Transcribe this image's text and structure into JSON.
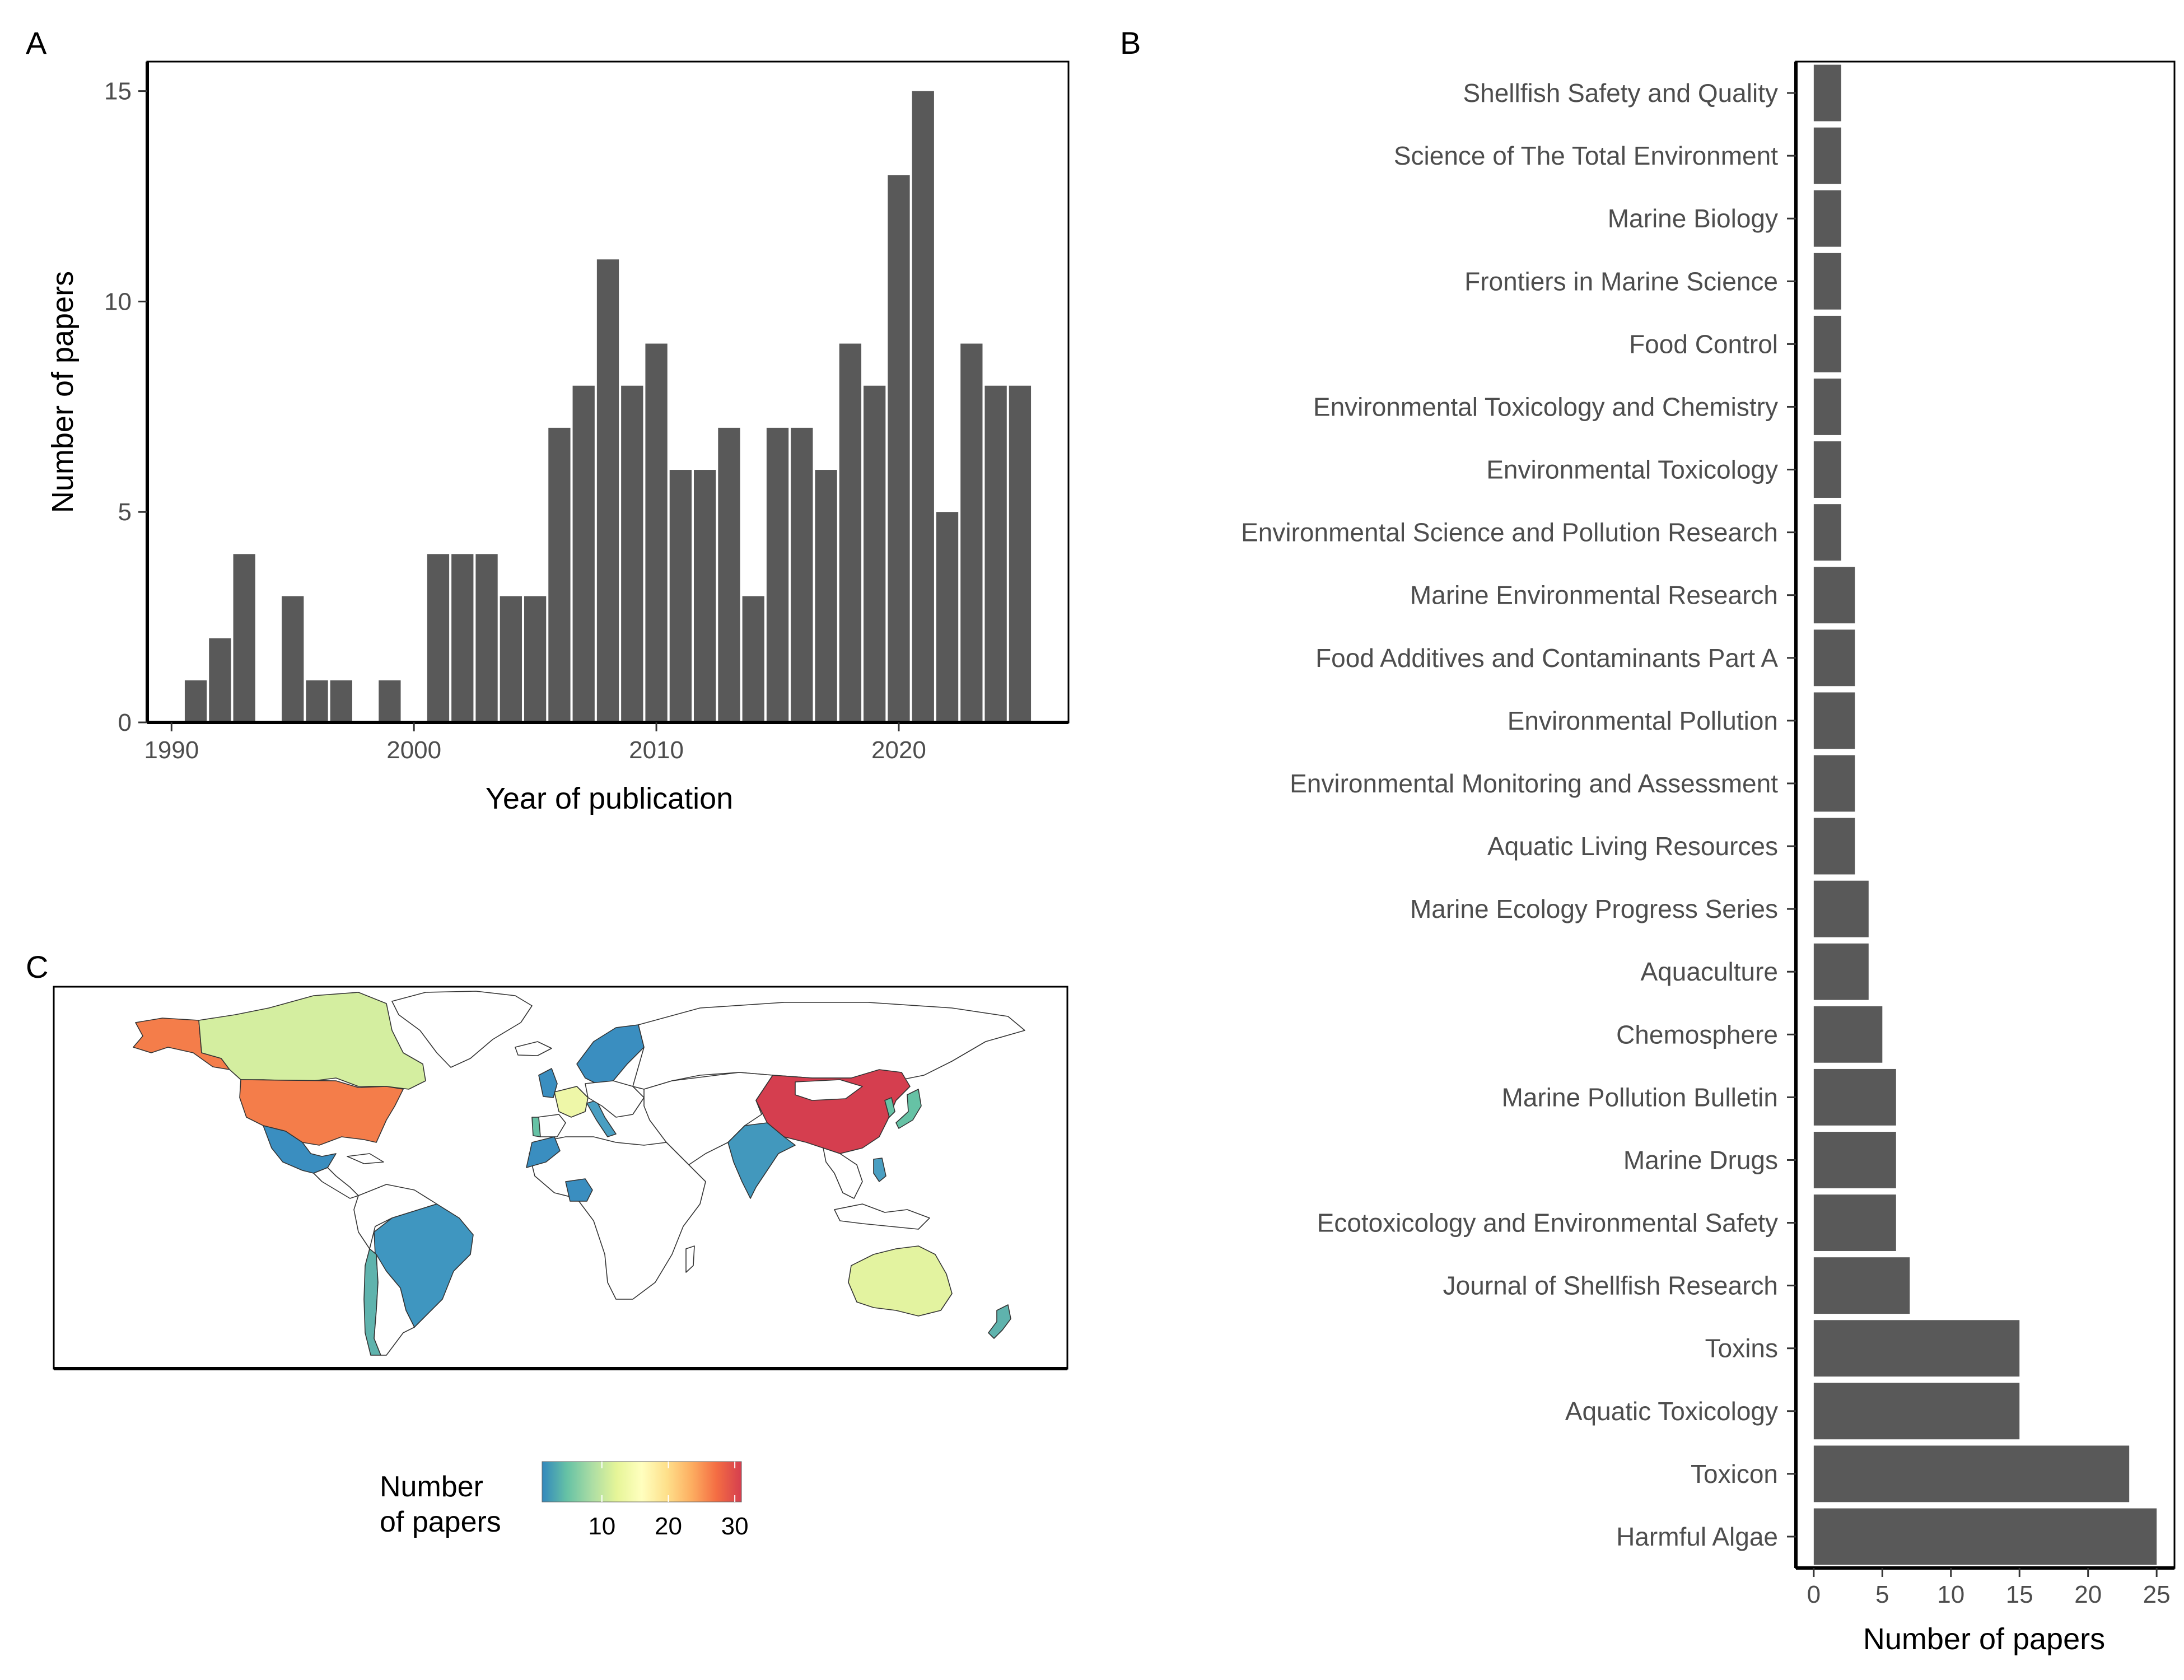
{
  "panels": {
    "a": "A",
    "b": "B",
    "c": "C"
  },
  "chart_data": [
    {
      "type": "bar",
      "panel": "A",
      "xlabel": "Year of publication",
      "ylabel": "Number of papers",
      "xlim": [
        1989,
        2027
      ],
      "ylim": [
        0,
        15.7
      ],
      "xticks": [
        1990,
        2000,
        2010,
        2020
      ],
      "yticks": [
        0,
        5,
        10,
        15
      ],
      "grid": false,
      "x": [
        1991,
        1992,
        1993,
        1995,
        1996,
        1997,
        1999,
        2001,
        2002,
        2003,
        2004,
        2005,
        2006,
        2007,
        2008,
        2009,
        2010,
        2011,
        2012,
        2013,
        2014,
        2015,
        2016,
        2017,
        2018,
        2019,
        2020,
        2021,
        2022,
        2023,
        2024,
        2025
      ],
      "values": [
        1,
        2,
        4,
        3,
        1,
        1,
        1,
        4,
        4,
        4,
        3,
        3,
        7,
        8,
        11,
        8,
        9,
        6,
        6,
        7,
        3,
        7,
        7,
        6,
        9,
        8,
        13,
        15,
        5,
        9,
        8,
        8
      ],
      "bar_color": "#595959"
    },
    {
      "type": "bar",
      "orientation": "horizontal",
      "panel": "B",
      "xlabel": "Number of papers",
      "ylabel": "",
      "xlim": [
        -1.3,
        26.3
      ],
      "xticks": [
        0,
        5,
        10,
        15,
        20,
        25
      ],
      "grid": false,
      "categories": [
        "Shellfish Safety and Quality",
        "Science of The Total Environment",
        "Marine Biology",
        "Frontiers in Marine Science",
        "Food Control",
        "Environmental Toxicology and Chemistry",
        "Environmental Toxicology",
        "Environmental Science and Pollution Research",
        "Marine Environmental Research",
        "Food Additives and Contaminants Part A",
        "Environmental Pollution",
        "Environmental Monitoring and Assessment",
        "Aquatic Living Resources",
        "Marine Ecology Progress Series",
        "Aquaculture",
        "Chemosphere",
        "Marine Pollution Bulletin",
        "Marine Drugs",
        "Ecotoxicology and Environmental Safety",
        "Journal of Shellfish Research",
        "Toxins",
        "Aquatic Toxicology",
        "Toxicon",
        "Harmful Algae"
      ],
      "values": [
        2,
        2,
        2,
        2,
        2,
        2,
        2,
        2,
        3,
        3,
        3,
        3,
        3,
        4,
        4,
        5,
        6,
        6,
        6,
        7,
        15,
        15,
        23,
        25
      ],
      "bar_color": "#595959"
    },
    {
      "type": "map",
      "panel": "C",
      "legend": {
        "title_lines": [
          "Number",
          "of papers"
        ],
        "ticks": [
          10,
          20,
          30
        ],
        "range": [
          1,
          31
        ],
        "palette": [
          "#3288bd",
          "#66c2a5",
          "#abdda4",
          "#e6f598",
          "#ffffbf",
          "#fee08b",
          "#fdae61",
          "#f46d43",
          "#d53e4f"
        ],
        "position": "bottom"
      },
      "colored_regions": [
        {
          "region": "China",
          "color": "#d53e4f"
        },
        {
          "region": "United States",
          "color": "#f47d4a"
        },
        {
          "region": "Alaska",
          "color": "#f47d4a"
        },
        {
          "region": "Canada",
          "color": "#d4eea0"
        },
        {
          "region": "Australia",
          "color": "#e3f3a0"
        },
        {
          "region": "France",
          "color": "#eef7a8"
        },
        {
          "region": "Brazil",
          "color": "#3f96c0"
        },
        {
          "region": "Mexico",
          "color": "#3a8ec0"
        },
        {
          "region": "India",
          "color": "#4298bd"
        },
        {
          "region": "Japan",
          "color": "#66c2a5"
        },
        {
          "region": "Chile",
          "color": "#5fb3ad"
        },
        {
          "region": "Argentina",
          "color": "#ffffff"
        },
        {
          "region": "Nigeria",
          "color": "#3a8ec0"
        },
        {
          "region": "Scandinavia",
          "color": "#3a8ec0"
        },
        {
          "region": "Portugal",
          "color": "#66c2a5"
        },
        {
          "region": "Spain",
          "color": "#ffffff"
        },
        {
          "region": "Italy",
          "color": "#4a9fc2"
        },
        {
          "region": "Morocco",
          "color": "#3a8ec0"
        },
        {
          "region": "New Zealand",
          "color": "#5fb3ad"
        },
        {
          "region": "Philippines",
          "color": "#4a9fc2"
        },
        {
          "region": "South Korea",
          "color": "#66c2a5"
        },
        {
          "region": "Russia",
          "color": "#ffffff"
        },
        {
          "region": "Greenland",
          "color": "#ffffff"
        },
        {
          "region": "Africa",
          "color": "#ffffff"
        }
      ]
    }
  ]
}
